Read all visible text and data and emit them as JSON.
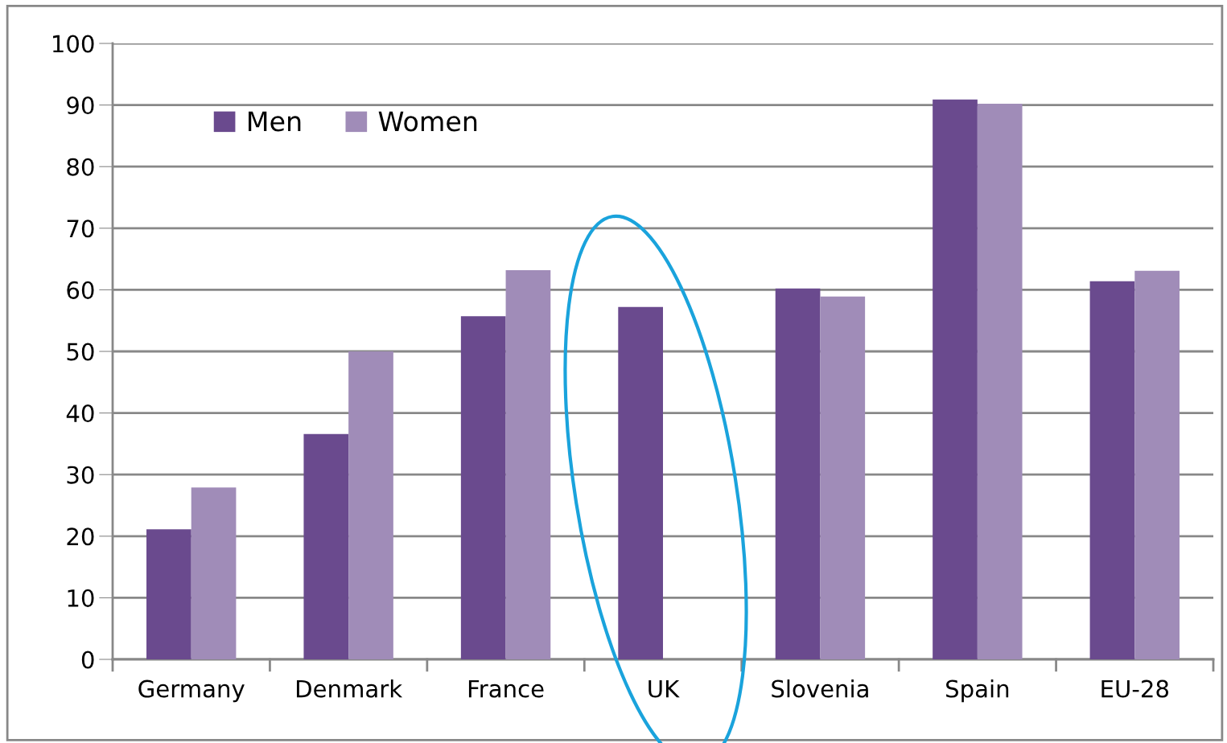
{
  "chart_data": {
    "type": "bar",
    "categories": [
      "Germany",
      "Denmark",
      "France",
      "UK",
      "Slovenia",
      "Spain",
      "EU-28"
    ],
    "series": [
      {
        "name": "Men",
        "color": "#6a4a8e",
        "values": [
          21.1,
          36.6,
          55.7,
          57.2,
          60.2,
          90.9,
          61.4
        ]
      },
      {
        "name": "Women",
        "color": "#a08cb8",
        "values": [
          27.9,
          50.0,
          63.2,
          null,
          58.9,
          90.2,
          63.1
        ]
      }
    ],
    "ylim": [
      0,
      100
    ],
    "yticks": [
      0,
      10,
      20,
      30,
      40,
      50,
      60,
      70,
      80,
      90,
      100
    ],
    "grid": "y",
    "legend": "top left"
  }
}
